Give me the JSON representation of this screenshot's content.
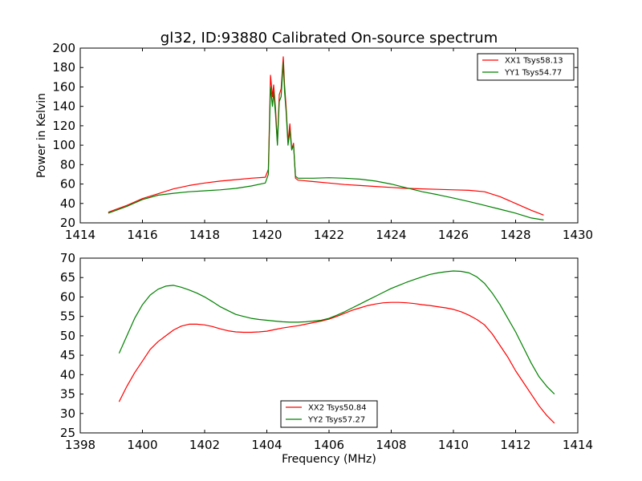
{
  "figure": {
    "title": "gl32, ID:93880 Calibrated On-source spectrum",
    "ylabel": "Power in Kelvin",
    "xlabel": "Frequency (MHz)"
  },
  "chart_data": [
    {
      "type": "line",
      "title": "gl32, ID:93880 Calibrated On-source spectrum",
      "xlabel": "",
      "ylabel": "Power in Kelvin",
      "xlim": [
        1414,
        1430
      ],
      "ylim": [
        20,
        200
      ],
      "xticks": [
        1414,
        1416,
        1418,
        1420,
        1422,
        1424,
        1426,
        1428,
        1430
      ],
      "yticks": [
        20,
        40,
        60,
        80,
        100,
        120,
        140,
        160,
        180,
        200
      ],
      "legend": "top-right",
      "grid": false,
      "series": [
        {
          "name": "XX1 Tsys58.13",
          "color": "#ff0000",
          "x": [
            1414.9,
            1415.5,
            1416,
            1416.5,
            1417,
            1417.5,
            1418,
            1418.5,
            1419,
            1419.5,
            1419.95,
            1420.05,
            1420.12,
            1420.18,
            1420.22,
            1420.28,
            1420.34,
            1420.4,
            1420.46,
            1420.53,
            1420.57,
            1420.62,
            1420.68,
            1420.74,
            1420.8,
            1420.86,
            1420.92,
            1421.0,
            1421.5,
            1422,
            1422.5,
            1423,
            1423.5,
            1424,
            1424.5,
            1425,
            1425.5,
            1426,
            1426.5,
            1427,
            1427.5,
            1428,
            1428.5,
            1428.9
          ],
          "y": [
            31,
            38,
            45,
            50,
            55,
            58.5,
            61,
            63,
            64.5,
            66,
            67,
            75,
            172,
            150,
            162,
            138,
            102,
            152,
            158,
            191,
            162,
            140,
            103,
            122,
            96,
            102,
            66,
            64,
            62.5,
            61,
            59.5,
            58.5,
            57.5,
            56.5,
            55.5,
            55,
            54.5,
            54,
            53.5,
            52,
            47,
            40,
            33,
            28
          ]
        },
        {
          "name": "YY1 Tsys54.77",
          "color": "#008000",
          "x": [
            1414.9,
            1415.5,
            1416,
            1416.5,
            1417,
            1417.5,
            1418,
            1418.5,
            1419,
            1419.5,
            1419.95,
            1420.05,
            1420.12,
            1420.18,
            1420.22,
            1420.28,
            1420.34,
            1420.4,
            1420.46,
            1420.53,
            1420.57,
            1420.62,
            1420.68,
            1420.74,
            1420.8,
            1420.86,
            1420.92,
            1421.0,
            1421.5,
            1422,
            1422.5,
            1423,
            1423.5,
            1424,
            1424.5,
            1425,
            1425.5,
            1426,
            1426.5,
            1427,
            1427.5,
            1428,
            1428.5,
            1428.9
          ],
          "y": [
            30,
            37,
            44,
            48.5,
            50.5,
            52,
            53,
            54,
            55.5,
            58,
            61,
            70,
            160,
            140,
            155,
            132,
            100,
            145,
            150,
            185,
            155,
            135,
            100,
            115,
            95,
            100,
            68,
            66,
            66,
            66.5,
            66,
            65,
            63,
            60,
            56,
            52,
            49,
            45.5,
            42,
            38,
            34,
            30,
            25,
            23
          ]
        }
      ]
    },
    {
      "type": "line",
      "title": "",
      "xlabel": "Frequency (MHz)",
      "ylabel": "",
      "xlim": [
        1398,
        1414
      ],
      "ylim": [
        25,
        70
      ],
      "xticks": [
        1398,
        1400,
        1402,
        1404,
        1406,
        1408,
        1410,
        1412,
        1414
      ],
      "yticks": [
        25,
        30,
        35,
        40,
        45,
        50,
        55,
        60,
        65,
        70
      ],
      "legend": "bottom-center",
      "grid": false,
      "series": [
        {
          "name": "XX2 Tsys50.84",
          "color": "#ff0000",
          "x": [
            1399.25,
            1399.5,
            1399.75,
            1400.0,
            1400.25,
            1400.5,
            1400.75,
            1401.0,
            1401.25,
            1401.5,
            1401.75,
            1402.0,
            1402.25,
            1402.5,
            1402.75,
            1403.0,
            1403.25,
            1403.5,
            1403.75,
            1404.0,
            1404.25,
            1404.5,
            1404.75,
            1405.0,
            1405.25,
            1405.5,
            1405.75,
            1406.0,
            1406.25,
            1406.5,
            1406.75,
            1407.0,
            1407.25,
            1407.5,
            1407.75,
            1408.0,
            1408.25,
            1408.5,
            1408.75,
            1409.0,
            1409.25,
            1409.5,
            1409.75,
            1410.0,
            1410.25,
            1410.5,
            1410.75,
            1411.0,
            1411.25,
            1411.5,
            1411.75,
            1412.0,
            1412.25,
            1412.5,
            1412.75,
            1413.0,
            1413.25
          ],
          "y": [
            33,
            37,
            40.5,
            43.5,
            46.5,
            48.5,
            50,
            51.5,
            52.5,
            53,
            53,
            52.8,
            52.4,
            51.8,
            51.3,
            51,
            50.9,
            50.9,
            51,
            51.2,
            51.6,
            52,
            52.3,
            52.6,
            53,
            53.4,
            53.8,
            54.3,
            55,
            55.8,
            56.6,
            57.2,
            57.8,
            58.2,
            58.5,
            58.6,
            58.6,
            58.5,
            58.3,
            58,
            57.8,
            57.5,
            57.2,
            56.8,
            56.2,
            55.3,
            54.2,
            52.8,
            50.5,
            47.5,
            44.5,
            41,
            38,
            35,
            32,
            29.5,
            27.5
          ]
        },
        {
          "name": "YY2 Tsys57.27",
          "color": "#008000",
          "x": [
            1399.25,
            1399.5,
            1399.75,
            1400.0,
            1400.25,
            1400.5,
            1400.75,
            1401.0,
            1401.25,
            1401.5,
            1401.75,
            1402.0,
            1402.25,
            1402.5,
            1402.75,
            1403.0,
            1403.25,
            1403.5,
            1403.75,
            1404.0,
            1404.25,
            1404.5,
            1404.75,
            1405.0,
            1405.25,
            1405.5,
            1405.75,
            1406.0,
            1406.25,
            1406.5,
            1406.75,
            1407.0,
            1407.25,
            1407.5,
            1407.75,
            1408.0,
            1408.25,
            1408.5,
            1408.75,
            1409.0,
            1409.25,
            1409.5,
            1409.75,
            1410.0,
            1410.25,
            1410.5,
            1410.75,
            1411.0,
            1411.25,
            1411.5,
            1411.75,
            1412.0,
            1412.25,
            1412.5,
            1412.75,
            1413.0,
            1413.25
          ],
          "y": [
            45.5,
            50,
            54.5,
            58,
            60.5,
            62,
            62.8,
            63,
            62.5,
            61.8,
            61,
            60,
            58.8,
            57.5,
            56.5,
            55.5,
            55,
            54.5,
            54.2,
            54,
            53.8,
            53.6,
            53.5,
            53.5,
            53.6,
            53.8,
            54,
            54.5,
            55.3,
            56.2,
            57.2,
            58.2,
            59.2,
            60.2,
            61.2,
            62.2,
            63,
            63.8,
            64.5,
            65.2,
            65.8,
            66.2,
            66.5,
            66.7,
            66.6,
            66.2,
            65.2,
            63.5,
            61,
            58,
            54.5,
            51,
            47,
            43,
            39.5,
            37,
            35
          ]
        }
      ]
    }
  ]
}
